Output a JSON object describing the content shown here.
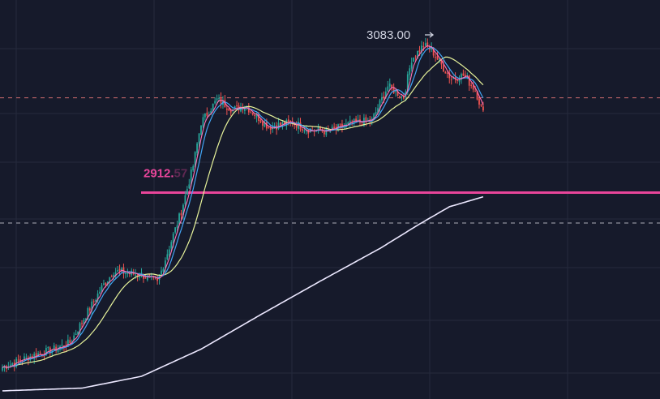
{
  "colors": {
    "background": "#161a2b",
    "grid": "#252a3d",
    "candle_up": "#26a69a",
    "candle_down": "#ef5350",
    "ma_fast": "#ff6fb5",
    "ma_mid": "#42a5f5",
    "ma_slow": "#e6f29a",
    "ma_long": "#ece8ff",
    "support_line": "#e8459a",
    "dashed_upper": "#f07a7a",
    "dashed_lower": "#c8c8d4",
    "peak_label": "#d0d3e0"
  },
  "chart_data": {
    "type": "candlestick",
    "title": "",
    "xlabel": "",
    "ylabel": "",
    "ylim": [
      2685,
      3125
    ],
    "grid": true,
    "anchors": {
      "close": [
        [
          0,
          2720
        ],
        [
          14,
          2732
        ],
        [
          26,
          2740
        ],
        [
          34,
          2747
        ],
        [
          50,
          2808
        ],
        [
          56,
          2826
        ],
        [
          70,
          2822
        ],
        [
          78,
          2813
        ],
        [
          90,
          2892
        ],
        [
          96,
          2942
        ],
        [
          100,
          2990
        ],
        [
          108,
          3015
        ],
        [
          116,
          3004
        ],
        [
          122,
          3009
        ],
        [
          134,
          2985
        ],
        [
          146,
          2990
        ],
        [
          154,
          2982
        ],
        [
          164,
          2980
        ],
        [
          176,
          2989
        ],
        [
          186,
          2992
        ],
        [
          194,
          3030
        ],
        [
          202,
          3018
        ],
        [
          206,
          3060
        ],
        [
          212,
          3075
        ],
        [
          216,
          3070
        ],
        [
          222,
          3050
        ],
        [
          226,
          3038
        ],
        [
          232,
          3042
        ],
        [
          238,
          3026
        ],
        [
          242,
          3000
        ]
      ],
      "ma_long": [
        [
          0,
          2694
        ],
        [
          40,
          2697
        ],
        [
          70,
          2710
        ],
        [
          100,
          2740
        ],
        [
          130,
          2778
        ],
        [
          160,
          2815
        ],
        [
          190,
          2851
        ],
        [
          210,
          2878
        ],
        [
          225,
          2897
        ],
        [
          242,
          2908
        ]
      ]
    },
    "annotations": {
      "peak_label": "3083.00",
      "peak_value": 3083,
      "support_label": "2912.",
      "support_label_obscured": "57"
    },
    "horizontal_lines": [
      {
        "name": "support",
        "value": 2912.57,
        "style": "solid"
      },
      {
        "name": "upper-dashed",
        "value": 3017.13,
        "style": "dashed"
      },
      {
        "name": "lower-dashed",
        "value": 2879.02,
        "style": "dashed"
      }
    ]
  }
}
